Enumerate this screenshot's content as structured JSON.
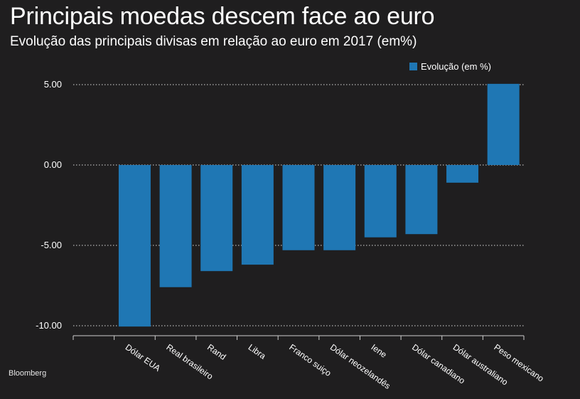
{
  "chart_data": {
    "type": "bar",
    "title": "Principais moedas descem face ao euro",
    "subtitle": "Evolução das principais divisas em relação ao euro em 2017 (em%)",
    "source": "Bloomberg",
    "categories": [
      "Dólar EUA",
      "Real brasileiro",
      "Rand",
      "Libra",
      "Franco suiço",
      "Dólar neozelandês",
      "Iene",
      "Dólar canadiano",
      "Dólar australiano",
      "Peso mexicano"
    ],
    "series": [
      {
        "name": "Evolução (em %)",
        "values": [
          -10.05,
          -7.6,
          -6.6,
          -6.2,
          -5.3,
          -5.3,
          -4.5,
          -4.3,
          -1.1,
          5.05
        ],
        "color": "#1f77b4"
      }
    ],
    "yticks": [
      "5.00",
      "0.00",
      "-5.00",
      "-10.00"
    ],
    "ylim": [
      -10.6,
      5.6
    ],
    "grid": true,
    "legend_position": "top-right"
  }
}
